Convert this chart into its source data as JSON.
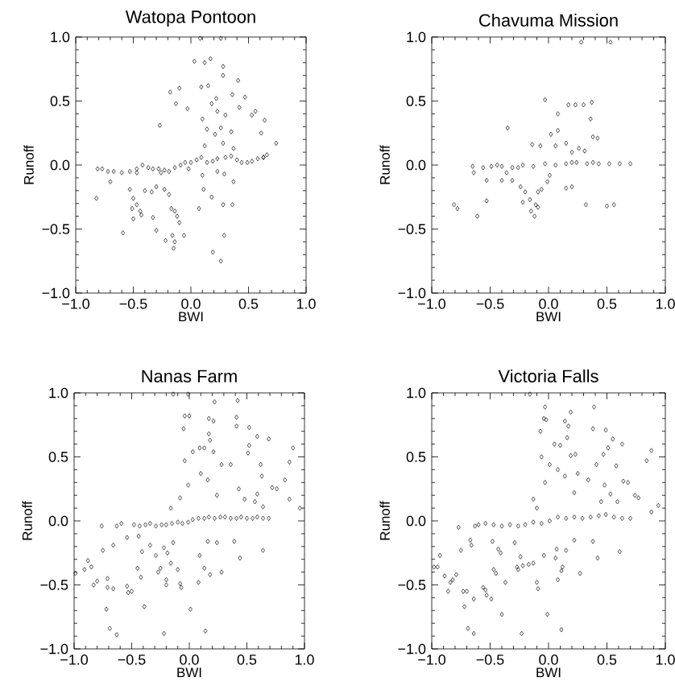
{
  "chart_data": [
    {
      "type": "scatter",
      "title": "Watopa Pontoon",
      "xlabel": "BWI",
      "ylabel": "Runoff",
      "marker": "diamond",
      "xlim": [
        -1,
        1
      ],
      "ylim": [
        -1,
        1
      ],
      "xticks": [
        {
          "value": -1,
          "label": "−1.0"
        },
        {
          "value": -0.5,
          "label": "−0.5"
        },
        {
          "value": 0,
          "label": "0.0"
        },
        {
          "value": 0.5,
          "label": "0.5"
        },
        {
          "value": 1,
          "label": "1.0"
        }
      ],
      "yticks": [
        {
          "value": -1,
          "label": "−1.0"
        },
        {
          "value": -0.5,
          "label": "−0.5"
        },
        {
          "value": 0,
          "label": "0.0"
        },
        {
          "value": 0.5,
          "label": "0.5"
        },
        {
          "value": 1,
          "label": "1.0"
        }
      ],
      "series": [
        {
          "color": "#000000",
          "x": [
            0.08,
            0.26,
            0.03,
            0.12,
            0.17,
            0.28,
            0.28,
            0.41,
            -0.18,
            -0.1,
            0.09,
            0.15,
            0.36,
            0.47,
            -0.13,
            -0.03,
            0.22,
            0.18,
            0.56,
            0.53,
            0.1,
            0.23,
            0.3,
            0.42,
            -0.27,
            0.14,
            0.26,
            0.21,
            0.35,
            0.61,
            0.74,
            0.64,
            0.28,
            0.37,
            0.12,
            0.66,
            0.63,
            -0.81,
            -0.77,
            -0.72,
            -0.67,
            -0.6,
            -0.53,
            -0.47,
            -0.42,
            -0.37,
            -0.33,
            -0.28,
            -0.23,
            -0.19,
            -0.14,
            -0.09,
            -0.05,
            0.0,
            0.05,
            0.09,
            0.14,
            0.19,
            0.23,
            0.3,
            0.35,
            0.4,
            0.44,
            0.49,
            0.53,
            0.58,
            0.63,
            -0.47,
            -0.26,
            -0.02,
            -0.82,
            -0.7,
            -0.53,
            -0.5,
            -0.47,
            -0.51,
            -0.44,
            -0.5,
            -0.43,
            -0.4,
            -0.34,
            -0.3,
            -0.33,
            -0.3,
            -0.59,
            -0.22,
            -0.17,
            -0.14,
            -0.12,
            -0.1,
            -0.16,
            -0.14,
            -0.15,
            -0.06,
            -0.23,
            -0.19,
            0.07,
            0.11,
            0.18,
            0.28,
            0.36,
            0.37,
            0.29,
            0.29,
            0.19,
            0.26,
            0.1,
            0.23
          ],
          "values": [
            0.99,
            0.99,
            0.81,
            0.8,
            0.83,
            0.77,
            0.7,
            0.66,
            0.57,
            0.6,
            0.61,
            0.62,
            0.55,
            0.53,
            0.48,
            0.44,
            0.52,
            0.48,
            0.42,
            0.39,
            0.36,
            0.42,
            0.39,
            0.45,
            0.31,
            0.28,
            0.29,
            0.24,
            0.26,
            0.25,
            0.17,
            0.35,
            0.17,
            0.13,
            0.15,
            0.08,
            0.06,
            -0.03,
            -0.03,
            -0.05,
            -0.05,
            -0.06,
            -0.05,
            -0.03,
            0.0,
            -0.02,
            -0.03,
            -0.03,
            -0.04,
            -0.05,
            -0.02,
            0.0,
            0.02,
            0.02,
            0.04,
            0.06,
            0.02,
            0.03,
            0.05,
            0.06,
            0.07,
            0.04,
            0.02,
            0.02,
            0.03,
            0.05,
            0.06,
            -0.06,
            -0.06,
            -0.03,
            -0.26,
            -0.13,
            -0.19,
            -0.26,
            -0.31,
            -0.34,
            -0.36,
            -0.42,
            -0.39,
            -0.2,
            -0.21,
            -0.17,
            -0.41,
            -0.51,
            -0.53,
            -0.59,
            -0.34,
            -0.36,
            -0.4,
            -0.45,
            -0.55,
            -0.6,
            -0.65,
            -0.55,
            -0.19,
            -0.23,
            -0.34,
            -0.19,
            -0.25,
            -0.31,
            -0.31,
            -0.13,
            -0.07,
            -0.55,
            -0.68,
            -0.75,
            -0.08,
            -0.05
          ]
        }
      ]
    },
    {
      "type": "scatter",
      "title": "Chavuma Mission",
      "xlabel": "BWI",
      "ylabel": "Runoff",
      "marker": "diamond",
      "xlim": [
        -1,
        1
      ],
      "ylim": [
        -1,
        1
      ],
      "xticks": [
        {
          "value": -1,
          "label": "−1.0"
        },
        {
          "value": -0.5,
          "label": "−0.5"
        },
        {
          "value": 0,
          "label": "0.0"
        },
        {
          "value": 0.5,
          "label": "0.5"
        },
        {
          "value": 1,
          "label": "1.0"
        }
      ],
      "yticks": [
        {
          "value": -1,
          "label": "−1.0"
        },
        {
          "value": -0.5,
          "label": "−0.5"
        },
        {
          "value": 0,
          "label": "0.0"
        },
        {
          "value": 0.5,
          "label": "0.5"
        },
        {
          "value": 1,
          "label": "1.0"
        }
      ],
      "series": [
        {
          "color": "#000000",
          "x": [
            0.28,
            0.53,
            -0.03,
            0.17,
            0.23,
            0.3,
            0.37,
            0.08,
            0.36,
            -0.35,
            -0.14,
            0.08,
            0.02,
            0.38,
            0.42,
            0.26,
            0.31,
            -0.07,
            0.06,
            0.15,
            0.2,
            -0.65,
            -0.56,
            -0.49,
            -0.44,
            -0.4,
            -0.31,
            -0.22,
            -0.13,
            -0.03,
            0.06,
            0.15,
            0.24,
            0.33,
            0.38,
            0.43,
            0.52,
            0.61,
            0.7,
            -0.26,
            0.2,
            -0.81,
            -0.78,
            -0.61,
            -0.53,
            -0.64,
            -0.53,
            -0.4,
            -0.31,
            -0.36,
            -0.24,
            -0.22,
            -0.2,
            -0.16,
            -0.15,
            -0.12,
            -0.11,
            -0.09,
            -0.06,
            -0.01,
            0.01,
            0.15,
            0.2,
            0.32,
            0.5,
            0.56,
            -0.09
          ],
          "values": [
            0.96,
            0.96,
            0.51,
            0.47,
            0.47,
            0.47,
            0.49,
            0.4,
            0.36,
            0.29,
            0.16,
            0.27,
            0.24,
            0.22,
            0.21,
            0.13,
            0.11,
            0.15,
            0.15,
            0.17,
            0.1,
            -0.01,
            -0.02,
            -0.01,
            0.0,
            -0.01,
            -0.02,
            0.0,
            -0.01,
            0.01,
            0.0,
            0.01,
            0.02,
            0.01,
            0.02,
            0.01,
            0.01,
            0.01,
            0.01,
            -0.02,
            0.02,
            -0.31,
            -0.34,
            -0.4,
            -0.28,
            -0.06,
            -0.12,
            -0.12,
            -0.12,
            -0.06,
            -0.17,
            -0.29,
            -0.21,
            -0.27,
            -0.36,
            -0.4,
            -0.31,
            -0.33,
            -0.19,
            -0.13,
            -0.08,
            -0.18,
            -0.17,
            -0.31,
            -0.32,
            -0.31,
            -0.21
          ]
        }
      ]
    },
    {
      "type": "scatter",
      "title": "Nanas Farm",
      "xlabel": "BWI",
      "ylabel": "Runoff",
      "marker": "diamond",
      "xlim": [
        -1,
        1
      ],
      "ylim": [
        -1,
        1
      ],
      "xticks": [
        {
          "value": -1,
          "label": "−1.0"
        },
        {
          "value": -0.5,
          "label": "−0.5"
        },
        {
          "value": 0,
          "label": "0.0"
        },
        {
          "value": 0.5,
          "label": "0.5"
        },
        {
          "value": 1,
          "label": "1.0"
        }
      ],
      "yticks": [
        {
          "value": -1,
          "label": "−1.0"
        },
        {
          "value": -0.5,
          "label": "−0.5"
        },
        {
          "value": 0,
          "label": "0.0"
        },
        {
          "value": 0.5,
          "label": "0.5"
        },
        {
          "value": 1,
          "label": "1.0"
        }
      ],
      "series": [
        {
          "color": "#000000",
          "x": [
            -0.14,
            -0.01,
            -0.04,
            0.0,
            0.22,
            0.42,
            0.41,
            0.17,
            0.21,
            0.41,
            -0.05,
            0.17,
            0.18,
            0.52,
            0.59,
            0.69,
            0.52,
            0.13,
            0.09,
            0.21,
            0.03,
            0.51,
            -0.04,
            0.28,
            0.36,
            0.62,
            0.1,
            0.87,
            0.9,
            -0.01,
            0.16,
            0.63,
            0.83,
            0.24,
            0.43,
            0.59,
            0.72,
            0.76,
            0.87,
            0.96,
            -0.08,
            -0.16,
            0.48,
            0.57,
            0.64,
            -0.48,
            -0.43,
            -0.38,
            -0.34,
            -0.29,
            -0.24,
            -0.2,
            -0.15,
            -0.1,
            -0.06,
            -0.01,
            0.03,
            0.08,
            0.13,
            0.17,
            0.22,
            0.27,
            0.31,
            0.36,
            0.41,
            0.45,
            0.5,
            0.55,
            0.59,
            0.64,
            0.69,
            -0.99,
            -0.91,
            -0.88,
            -0.85,
            -0.83,
            -0.8,
            -0.76,
            -0.75,
            -0.71,
            -0.71,
            -0.66,
            -0.72,
            -0.69,
            -0.63,
            -0.66,
            -0.63,
            -0.59,
            -0.54,
            -0.54,
            -0.53,
            -0.5,
            -0.45,
            -0.42,
            -0.41,
            -0.39,
            -0.44,
            -0.34,
            -0.27,
            -0.25,
            -0.29,
            -0.22,
            -0.19,
            -0.16,
            -0.14,
            -0.1,
            -0.08,
            -0.07,
            -0.22,
            0.01,
            0.14,
            0.08,
            0.09,
            0.13,
            0.18,
            0.16,
            0.28,
            0.24,
            0.39,
            0.44,
            0.64,
            -0.2,
            -0.2
          ],
          "values": [
            0.99,
            0.99,
            0.82,
            0.82,
            0.93,
            0.94,
            0.81,
            0.8,
            0.78,
            0.74,
            0.72,
            0.68,
            0.63,
            0.73,
            0.66,
            0.64,
            0.59,
            0.57,
            0.57,
            0.54,
            0.54,
            0.53,
            0.47,
            0.44,
            0.44,
            0.44,
            0.37,
            0.46,
            0.57,
            0.28,
            0.32,
            0.35,
            0.32,
            0.2,
            0.25,
            0.21,
            0.26,
            0.25,
            0.17,
            0.1,
            0.18,
            0.1,
            0.17,
            0.15,
            0.11,
            -0.03,
            -0.04,
            -0.03,
            -0.02,
            -0.04,
            -0.03,
            -0.03,
            -0.02,
            -0.01,
            -0.02,
            -0.01,
            0.01,
            0.02,
            0.02,
            0.03,
            0.02,
            0.03,
            0.03,
            0.02,
            0.02,
            0.03,
            0.02,
            0.02,
            0.03,
            0.02,
            0.02,
            -0.41,
            -0.38,
            -0.31,
            -0.36,
            -0.5,
            -0.47,
            -0.04,
            -0.23,
            -0.45,
            -0.52,
            -0.53,
            -0.69,
            -0.84,
            -0.89,
            -0.19,
            -0.04,
            -0.02,
            -0.13,
            -0.51,
            -0.56,
            -0.55,
            -0.37,
            -0.44,
            -0.24,
            -0.67,
            -0.12,
            -0.19,
            -0.4,
            -0.37,
            -0.27,
            -0.21,
            -0.25,
            -0.33,
            -0.17,
            -0.38,
            -0.49,
            -0.52,
            -0.88,
            -0.69,
            -0.86,
            -0.48,
            -0.27,
            -0.37,
            -0.42,
            -0.16,
            -0.4,
            -0.17,
            -0.16,
            -0.29,
            -0.23,
            -0.46,
            -0.5
          ]
        }
      ]
    },
    {
      "type": "scatter",
      "title": "Victoria Falls",
      "xlabel": "BWI",
      "ylabel": "Runoff",
      "marker": "diamond",
      "xlim": [
        -1,
        1
      ],
      "ylim": [
        -1,
        1
      ],
      "xticks": [
        {
          "value": -1,
          "label": "−1.0"
        },
        {
          "value": -0.5,
          "label": "−0.5"
        },
        {
          "value": 0,
          "label": "0.0"
        },
        {
          "value": 0.5,
          "label": "0.5"
        },
        {
          "value": 1,
          "label": "1.0"
        }
      ],
      "yticks": [
        {
          "value": -1,
          "label": "−1.0"
        },
        {
          "value": -0.5,
          "label": "−0.5"
        },
        {
          "value": 0,
          "label": "0.0"
        },
        {
          "value": 0.5,
          "label": "0.5"
        },
        {
          "value": 1,
          "label": "1.0"
        }
      ],
      "series": [
        {
          "color": "#000000",
          "x": [
            -0.16,
            -0.03,
            -0.04,
            -0.02,
            0.19,
            0.39,
            0.14,
            0.17,
            -0.07,
            0.05,
            0.1,
            0.16,
            0.38,
            0.49,
            0.55,
            0.63,
            0.51,
            0.47,
            0.23,
            0.19,
            -0.06,
            0.01,
            0.08,
            0.14,
            0.25,
            0.41,
            0.58,
            0.88,
            0.84,
            -0.03,
            0.22,
            0.34,
            0.48,
            0.64,
            0.68,
            0.77,
            0.74,
            0.53,
            0.45,
            0.59,
            -0.13,
            -0.1,
            0.88,
            0.94,
            -0.6,
            -0.54,
            -0.47,
            -0.4,
            -0.33,
            -0.26,
            -0.2,
            -0.13,
            -0.06,
            0.01,
            0.08,
            0.15,
            0.22,
            0.29,
            0.36,
            0.43,
            0.49,
            0.56,
            0.63,
            0.7,
            -0.98,
            -0.95,
            -0.93,
            -0.89,
            -0.86,
            -0.84,
            -0.82,
            -0.79,
            -0.77,
            -0.75,
            -0.73,
            -0.7,
            -0.72,
            -0.69,
            -0.64,
            -0.67,
            -0.66,
            -0.64,
            -0.63,
            -0.56,
            -0.54,
            -0.53,
            -0.49,
            -0.48,
            -0.43,
            -0.41,
            -0.47,
            -0.45,
            -0.4,
            -0.37,
            -0.29,
            -0.26,
            -0.27,
            -0.24,
            -0.22,
            -0.23,
            -0.17,
            -0.1,
            -0.09,
            -0.13,
            -0.04,
            -0.01,
            0.07,
            0.06,
            0.08,
            0.11,
            0.12,
            0.11,
            0.15,
            0.22,
            0.27,
            0.38,
            0.42,
            0.61
          ],
          "values": [
            0.99,
            0.89,
            0.8,
            0.79,
            0.85,
            0.89,
            0.78,
            0.74,
            0.7,
            0.6,
            0.59,
            0.65,
            0.72,
            0.71,
            0.64,
            0.6,
            0.57,
            0.52,
            0.52,
            0.51,
            0.5,
            0.44,
            0.4,
            0.35,
            0.37,
            0.44,
            0.43,
            0.55,
            0.47,
            0.3,
            0.22,
            0.32,
            0.28,
            0.31,
            0.3,
            0.18,
            0.2,
            0.21,
            0.15,
            0.15,
            0.17,
            0.1,
            0.07,
            0.12,
            -0.03,
            -0.02,
            -0.03,
            -0.04,
            -0.03,
            -0.04,
            -0.03,
            -0.01,
            -0.02,
            0.0,
            0.03,
            0.02,
            0.03,
            0.02,
            0.03,
            0.04,
            0.05,
            0.03,
            0.02,
            0.02,
            -0.36,
            -0.36,
            -0.27,
            -0.43,
            -0.55,
            -0.48,
            -0.46,
            -0.42,
            -0.05,
            -0.23,
            -0.55,
            -0.55,
            -0.67,
            -0.84,
            -0.88,
            -0.15,
            -0.19,
            -0.61,
            -0.04,
            -0.52,
            -0.54,
            -0.58,
            -0.61,
            -0.16,
            -0.22,
            -0.25,
            -0.38,
            -0.41,
            -0.73,
            -0.48,
            -0.17,
            -0.38,
            -0.36,
            -0.28,
            -0.35,
            -0.88,
            -0.34,
            -0.48,
            -0.53,
            -0.33,
            -0.27,
            -0.73,
            -0.22,
            -0.29,
            -0.46,
            -0.39,
            -0.36,
            -0.85,
            -0.23,
            -0.15,
            -0.41,
            -0.16,
            -0.29,
            -0.24
          ]
        }
      ]
    }
  ]
}
